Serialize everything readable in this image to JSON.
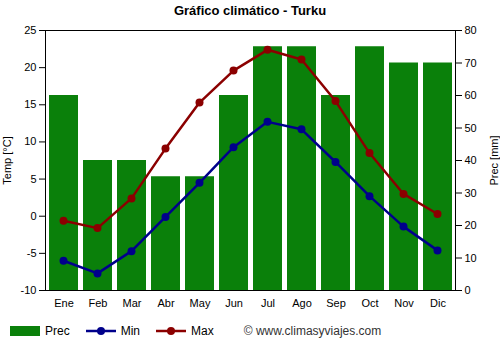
{
  "chart_data": {
    "type": "bar",
    "title": "Gráfico climático - Turku",
    "categories": [
      "Ene",
      "Feb",
      "Mar",
      "Abr",
      "May",
      "Jun",
      "Jul",
      "Ago",
      "Sep",
      "Oct",
      "Nov",
      "Dic"
    ],
    "series": [
      {
        "name": "Prec",
        "type": "bar",
        "axis": "y2",
        "color": "#0a800a",
        "values": [
          60,
          40,
          40,
          35,
          35,
          60,
          75,
          75,
          60,
          75,
          70,
          70
        ]
      },
      {
        "name": "Min",
        "type": "line",
        "marker": "circle",
        "color": "#00008b",
        "values": [
          -6.0,
          -7.7,
          -4.7,
          -0.1,
          4.5,
          9.3,
          12.7,
          11.7,
          7.3,
          2.7,
          -1.4,
          -4.6
        ]
      },
      {
        "name": "Max",
        "type": "line",
        "marker": "circle",
        "color": "#8b0000",
        "values": [
          -0.6,
          -1.6,
          2.4,
          9.1,
          15.3,
          19.6,
          22.4,
          21.1,
          15.5,
          8.5,
          3.0,
          0.3
        ]
      }
    ],
    "ylabel": "Temp [°C]",
    "y2label": "Prec [mm]",
    "ylim": [
      -10,
      25
    ],
    "yticks": [
      -10,
      -5,
      0,
      5,
      10,
      15,
      20,
      25
    ],
    "y2lim": [
      0,
      80
    ],
    "y2ticks": [
      0,
      10,
      20,
      30,
      40,
      50,
      60,
      70,
      80
    ],
    "grid": false,
    "legend": "bottom",
    "annotations": [
      "© www.climasyviajes.com"
    ]
  }
}
